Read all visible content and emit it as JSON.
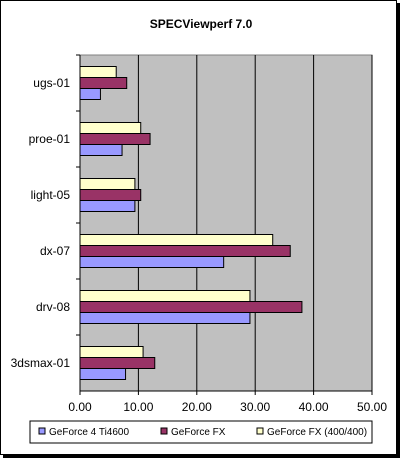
{
  "chart_data": {
    "type": "bar",
    "orientation": "horizontal",
    "title": "SPECViewperf 7.0",
    "xlabel": "",
    "ylabel": "",
    "categories": [
      "ugs-01",
      "proe-01",
      "light-05",
      "dx-07",
      "drv-08",
      "3dsmax-01"
    ],
    "series": [
      {
        "name": "GeForce 4 Ti4600",
        "color": "#9999ff",
        "values": [
          3.5,
          7.2,
          9.4,
          24.6,
          29.1,
          7.8
        ]
      },
      {
        "name": "GeForce FX",
        "color": "#993366",
        "values": [
          8.0,
          12.0,
          10.4,
          36.0,
          38.0,
          12.8
        ]
      },
      {
        "name": "GeForce FX (400/400)",
        "color": "#ffffcc",
        "values": [
          6.2,
          10.4,
          9.4,
          33.0,
          29.1,
          10.8
        ]
      }
    ],
    "xlim": [
      0,
      50
    ],
    "xticks": [
      "0.00",
      "10.00",
      "20.00",
      "30.00",
      "40.00",
      "50.00"
    ],
    "grid": true,
    "plot_background": "#c0c0c0",
    "legend_position": "bottom"
  }
}
